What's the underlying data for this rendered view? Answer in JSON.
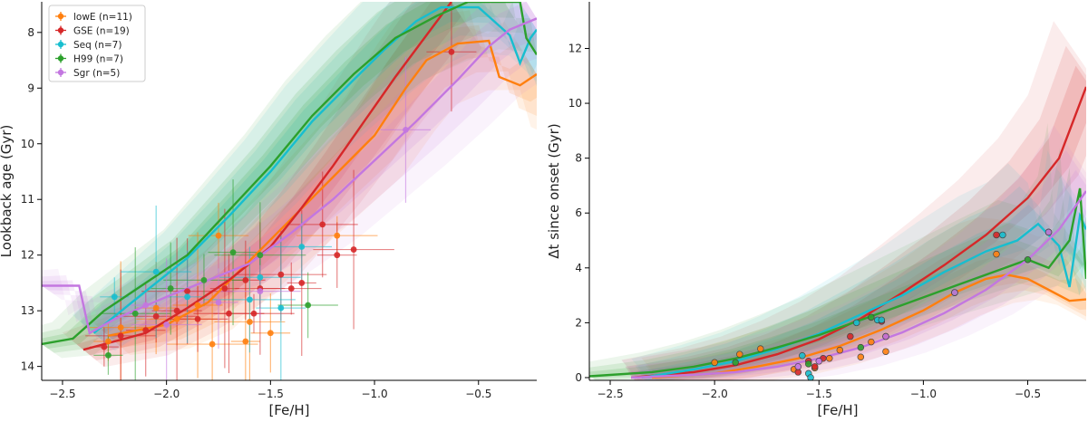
{
  "chart_data": [
    {
      "type": "scatter",
      "xlabel": "[Fe/H]",
      "ylabel": "Lookback age (Gyr)",
      "xlim": [
        -2.6,
        -0.22
      ],
      "ylim": [
        14.25,
        7.45
      ],
      "xticks": [
        -2.5,
        -2.0,
        -1.5,
        -1.0,
        -0.5
      ],
      "xtick_labels": [
        "−2.5",
        "−2.0",
        "−1.5",
        "−1.0",
        "−0.5"
      ],
      "yticks": [
        8,
        9,
        10,
        11,
        12,
        13,
        14
      ],
      "ytick_labels": [
        "8",
        "9",
        "10",
        "11",
        "12",
        "13",
        "14"
      ],
      "legend_position": "top-left",
      "series": [
        {
          "name": "lowE (n=11)",
          "color": "#ff7f0e",
          "curve": [
            [
              -2.28,
              13.45
            ],
            [
              -2.0,
              13.25
            ],
            [
              -1.8,
              12.85
            ],
            [
              -1.6,
              12.1
            ],
            [
              -1.4,
              11.35
            ],
            [
              -1.2,
              10.6
            ],
            [
              -1.0,
              9.85
            ],
            [
              -0.85,
              9.0
            ],
            [
              -0.75,
              8.5
            ],
            [
              -0.6,
              8.2
            ],
            [
              -0.45,
              8.15
            ],
            [
              -0.4,
              8.8
            ],
            [
              -0.3,
              8.95
            ],
            [
              -0.22,
              8.75
            ]
          ],
          "points": [
            [
              -2.28,
              13.55
            ],
            [
              -2.22,
              13.3
            ],
            [
              -2.05,
              12.95
            ],
            [
              -1.95,
              13.15
            ],
            [
              -1.85,
              12.9
            ],
            [
              -1.78,
              13.6
            ],
            [
              -1.75,
              11.65
            ],
            [
              -1.62,
              13.55
            ],
            [
              -1.6,
              13.2
            ],
            [
              -1.5,
              13.4
            ],
            [
              -1.18,
              11.65
            ]
          ]
        },
        {
          "name": "GSE (n=19)",
          "color": "#d62728",
          "curve": [
            [
              -2.4,
              13.7
            ],
            [
              -2.1,
              13.4
            ],
            [
              -1.9,
              12.95
            ],
            [
              -1.7,
              12.45
            ],
            [
              -1.5,
              11.85
            ],
            [
              -1.35,
              11.15
            ],
            [
              -1.2,
              10.4
            ],
            [
              -1.05,
              9.6
            ],
            [
              -0.9,
              8.8
            ],
            [
              -0.75,
              8.05
            ],
            [
              -0.63,
              7.45
            ]
          ],
          "points": [
            [
              -2.3,
              13.65
            ],
            [
              -2.22,
              13.45
            ],
            [
              -2.1,
              13.35
            ],
            [
              -2.05,
              13.1
            ],
            [
              -1.95,
              13.0
            ],
            [
              -1.9,
              12.65
            ],
            [
              -1.85,
              13.15
            ],
            [
              -1.72,
              12.6
            ],
            [
              -1.7,
              13.05
            ],
            [
              -1.62,
              12.45
            ],
            [
              -1.58,
              13.05
            ],
            [
              -1.55,
              12.6
            ],
            [
              -1.45,
              12.35
            ],
            [
              -1.4,
              12.6
            ],
            [
              -1.35,
              12.5
            ],
            [
              -1.25,
              11.45
            ],
            [
              -1.18,
              12.0
            ],
            [
              -1.1,
              11.9
            ],
            [
              -0.63,
              8.35
            ]
          ]
        },
        {
          "name": "Seq (n=7)",
          "color": "#17becf",
          "curve": [
            [
              -2.35,
              13.4
            ],
            [
              -2.1,
              12.65
            ],
            [
              -1.9,
              12.05
            ],
            [
              -1.7,
              11.3
            ],
            [
              -1.5,
              10.5
            ],
            [
              -1.3,
              9.6
            ],
            [
              -1.1,
              8.85
            ],
            [
              -0.95,
              8.3
            ],
            [
              -0.8,
              7.8
            ],
            [
              -0.68,
              7.55
            ],
            [
              -0.5,
              7.55
            ],
            [
              -0.35,
              8.05
            ],
            [
              -0.3,
              8.55
            ],
            [
              -0.25,
              8.1
            ],
            [
              -0.22,
              7.95
            ]
          ],
          "points": [
            [
              -2.25,
              12.75
            ],
            [
              -2.05,
              12.3
            ],
            [
              -1.9,
              12.75
            ],
            [
              -1.55,
              12.4
            ],
            [
              -1.45,
              12.95
            ],
            [
              -1.6,
              12.8
            ],
            [
              -1.35,
              11.85
            ]
          ]
        },
        {
          "name": "H99 (n=7)",
          "color": "#2ca02c",
          "curve": [
            [
              -2.6,
              13.6
            ],
            [
              -2.45,
              13.5
            ],
            [
              -2.3,
              13.0
            ],
            [
              -2.1,
              12.5
            ],
            [
              -1.9,
              12.0
            ],
            [
              -1.7,
              11.2
            ],
            [
              -1.5,
              10.4
            ],
            [
              -1.3,
              9.5
            ],
            [
              -1.1,
              8.75
            ],
            [
              -0.9,
              8.1
            ],
            [
              -0.7,
              7.7
            ],
            [
              -0.55,
              7.45
            ],
            [
              -0.3,
              7.45
            ],
            [
              -0.27,
              8.1
            ],
            [
              -0.22,
              8.4
            ]
          ],
          "points": [
            [
              -2.28,
              13.8
            ],
            [
              -2.15,
              13.05
            ],
            [
              -1.98,
              12.6
            ],
            [
              -1.82,
              12.45
            ],
            [
              -1.68,
              11.95
            ],
            [
              -1.55,
              12.0
            ],
            [
              -1.32,
              12.9
            ]
          ]
        },
        {
          "name": "Sgr (n=5)",
          "color": "#c377e0",
          "curve": [
            [
              -2.6,
              12.55
            ],
            [
              -2.42,
              12.55
            ],
            [
              -2.37,
              13.4
            ],
            [
              -2.25,
              13.15
            ],
            [
              -2.0,
              12.75
            ],
            [
              -1.8,
              12.45
            ],
            [
              -1.6,
              12.15
            ],
            [
              -1.4,
              11.6
            ],
            [
              -1.2,
              11.0
            ],
            [
              -1.0,
              10.3
            ],
            [
              -0.8,
              9.6
            ],
            [
              -0.6,
              8.85
            ],
            [
              -0.45,
              8.25
            ],
            [
              -0.35,
              7.95
            ],
            [
              -0.22,
              7.75
            ]
          ],
          "points": [
            [
              -2.1,
              12.9
            ],
            [
              -2.0,
              13.25
            ],
            [
              -1.75,
              12.85
            ],
            [
              -1.55,
              12.65
            ],
            [
              -0.85,
              9.75
            ]
          ]
        }
      ]
    },
    {
      "type": "scatter",
      "xlabel": "[Fe/H]",
      "ylabel": "Δt since onset (Gyr)",
      "xlim": [
        -2.6,
        -0.22
      ],
      "ylim": [
        -0.1,
        13.7
      ],
      "xticks": [
        -2.5,
        -2.0,
        -1.5,
        -1.0,
        -0.5
      ],
      "xtick_labels": [
        "−2.5",
        "−2.0",
        "−1.5",
        "−1.0",
        "−0.5"
      ],
      "yticks": [
        0,
        2,
        4,
        6,
        8,
        10,
        12
      ],
      "ytick_labels": [
        "0",
        "2",
        "4",
        "6",
        "8",
        "10",
        "12"
      ],
      "series": [
        {
          "name": "lowE",
          "color": "#ff7f0e",
          "curve": [
            [
              -2.3,
              0.0
            ],
            [
              -2.0,
              0.15
            ],
            [
              -1.8,
              0.4
            ],
            [
              -1.6,
              0.7
            ],
            [
              -1.4,
              1.15
            ],
            [
              -1.2,
              1.75
            ],
            [
              -1.0,
              2.45
            ],
            [
              -0.85,
              3.1
            ],
            [
              -0.7,
              3.6
            ],
            [
              -0.6,
              3.75
            ],
            [
              -0.5,
              3.6
            ],
            [
              -0.4,
              3.2
            ],
            [
              -0.3,
              2.8
            ],
            [
              -0.22,
              2.85
            ]
          ],
          "points": [
            [
              -2.0,
              0.55
            ],
            [
              -1.88,
              0.85
            ],
            [
              -1.78,
              1.05
            ],
            [
              -1.62,
              0.3
            ],
            [
              -1.52,
              0.35
            ],
            [
              -1.45,
              0.7
            ],
            [
              -1.4,
              1.0
            ],
            [
              -1.3,
              0.75
            ],
            [
              -1.25,
              1.3
            ],
            [
              -1.18,
              0.95
            ],
            [
              -0.65,
              4.5
            ]
          ]
        },
        {
          "name": "GSE",
          "color": "#d62728",
          "curve": [
            [
              -2.4,
              0.0
            ],
            [
              -2.1,
              0.2
            ],
            [
              -1.9,
              0.45
            ],
            [
              -1.7,
              0.85
            ],
            [
              -1.5,
              1.4
            ],
            [
              -1.3,
              2.15
            ],
            [
              -1.1,
              3.1
            ],
            [
              -0.9,
              4.1
            ],
            [
              -0.7,
              5.2
            ],
            [
              -0.5,
              6.55
            ],
            [
              -0.35,
              8.0
            ],
            [
              -0.22,
              10.6
            ]
          ],
          "points": [
            [
              -1.6,
              0.2
            ],
            [
              -1.55,
              0.6
            ],
            [
              -1.52,
              0.4
            ],
            [
              -1.48,
              0.7
            ],
            [
              -1.35,
              1.5
            ],
            [
              -1.2,
              2.05
            ],
            [
              -1.18,
              1.5
            ],
            [
              -0.85,
              3.1
            ],
            [
              -0.65,
              5.2
            ]
          ]
        },
        {
          "name": "Seq",
          "color": "#17becf",
          "curve": [
            [
              -2.35,
              0.0
            ],
            [
              -2.1,
              0.3
            ],
            [
              -1.9,
              0.6
            ],
            [
              -1.7,
              1.05
            ],
            [
              -1.5,
              1.6
            ],
            [
              -1.3,
              2.3
            ],
            [
              -1.1,
              3.0
            ],
            [
              -0.9,
              3.85
            ],
            [
              -0.7,
              4.6
            ],
            [
              -0.55,
              5.0
            ],
            [
              -0.45,
              5.6
            ],
            [
              -0.35,
              4.8
            ],
            [
              -0.3,
              3.3
            ],
            [
              -0.25,
              5.9
            ],
            [
              -0.22,
              5.4
            ]
          ],
          "points": [
            [
              -1.58,
              0.8
            ],
            [
              -1.55,
              0.15
            ],
            [
              -1.54,
              0.0
            ],
            [
              -1.32,
              2.0
            ],
            [
              -1.22,
              2.1
            ],
            [
              -1.2,
              2.1
            ],
            [
              -0.62,
              5.2
            ]
          ]
        },
        {
          "name": "H99",
          "color": "#2ca02c",
          "curve": [
            [
              -2.6,
              0.05
            ],
            [
              -2.3,
              0.2
            ],
            [
              -2.1,
              0.4
            ],
            [
              -1.9,
              0.7
            ],
            [
              -1.7,
              1.1
            ],
            [
              -1.5,
              1.55
            ],
            [
              -1.3,
              2.1
            ],
            [
              -1.1,
              2.65
            ],
            [
              -0.9,
              3.2
            ],
            [
              -0.7,
              3.75
            ],
            [
              -0.5,
              4.3
            ],
            [
              -0.4,
              4.0
            ],
            [
              -0.3,
              5.0
            ],
            [
              -0.25,
              6.9
            ],
            [
              -0.22,
              3.6
            ]
          ],
          "points": [
            [
              -1.9,
              0.55
            ],
            [
              -1.55,
              0.5
            ],
            [
              -1.3,
              1.1
            ],
            [
              -1.25,
              2.2
            ],
            [
              -0.85,
              3.1
            ],
            [
              -0.5,
              4.3
            ],
            [
              -0.4,
              5.3
            ]
          ]
        },
        {
          "name": "Sgr",
          "color": "#c377e0",
          "curve": [
            [
              -2.4,
              0.0
            ],
            [
              -2.1,
              0.1
            ],
            [
              -1.9,
              0.2
            ],
            [
              -1.7,
              0.4
            ],
            [
              -1.5,
              0.7
            ],
            [
              -1.3,
              1.1
            ],
            [
              -1.1,
              1.65
            ],
            [
              -0.9,
              2.35
            ],
            [
              -0.7,
              3.2
            ],
            [
              -0.5,
              4.3
            ],
            [
              -0.35,
              5.4
            ],
            [
              -0.22,
              6.8
            ]
          ],
          "points": [
            [
              -1.6,
              0.4
            ],
            [
              -1.5,
              0.6
            ],
            [
              -1.18,
              1.5
            ],
            [
              -0.85,
              3.1
            ],
            [
              -0.4,
              5.3
            ]
          ]
        }
      ]
    }
  ]
}
